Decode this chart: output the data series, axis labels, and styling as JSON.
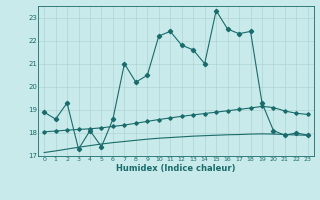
{
  "xlabel": "Humidex (Indice chaleur)",
  "bg_color": "#c8eaea",
  "line_color": "#1a6b6b",
  "grid_color": "#b0d4d4",
  "xlim": [
    -0.5,
    23.5
  ],
  "ylim": [
    17.0,
    23.5
  ],
  "yticks": [
    17,
    18,
    19,
    20,
    21,
    22,
    23
  ],
  "xticks": [
    0,
    1,
    2,
    3,
    4,
    5,
    6,
    7,
    8,
    9,
    10,
    11,
    12,
    13,
    14,
    15,
    16,
    17,
    18,
    19,
    20,
    21,
    22,
    23
  ],
  "main_x": [
    0,
    1,
    2,
    3,
    4,
    5,
    6,
    7,
    8,
    9,
    10,
    11,
    12,
    13,
    14,
    15,
    16,
    17,
    18,
    19,
    20,
    21,
    22,
    23
  ],
  "main_y": [
    18.9,
    18.6,
    19.3,
    17.3,
    18.1,
    17.4,
    18.6,
    21.0,
    20.2,
    20.5,
    22.2,
    22.4,
    21.8,
    21.6,
    21.0,
    23.3,
    22.5,
    22.3,
    22.4,
    19.3,
    18.1,
    17.9,
    18.0,
    17.9
  ],
  "upper_x": [
    0,
    1,
    2,
    3,
    4,
    5,
    6,
    7,
    8,
    9,
    10,
    11,
    12,
    13,
    14,
    15,
    16,
    17,
    18,
    19,
    20,
    21,
    22,
    23
  ],
  "upper_y": [
    18.05,
    18.08,
    18.12,
    18.15,
    18.18,
    18.22,
    18.28,
    18.34,
    18.42,
    18.5,
    18.58,
    18.65,
    18.72,
    18.78,
    18.84,
    18.9,
    18.96,
    19.02,
    19.08,
    19.15,
    19.1,
    18.95,
    18.85,
    18.8
  ],
  "upper_has_markers": true,
  "lower_x": [
    0,
    1,
    2,
    3,
    4,
    5,
    6,
    7,
    8,
    9,
    10,
    11,
    12,
    13,
    14,
    15,
    16,
    17,
    18,
    19,
    20,
    21,
    22,
    23
  ],
  "lower_y": [
    17.15,
    17.22,
    17.3,
    17.38,
    17.45,
    17.52,
    17.58,
    17.63,
    17.68,
    17.73,
    17.77,
    17.8,
    17.83,
    17.86,
    17.88,
    17.9,
    17.92,
    17.93,
    17.95,
    17.96,
    17.95,
    17.93,
    17.91,
    17.9
  ]
}
